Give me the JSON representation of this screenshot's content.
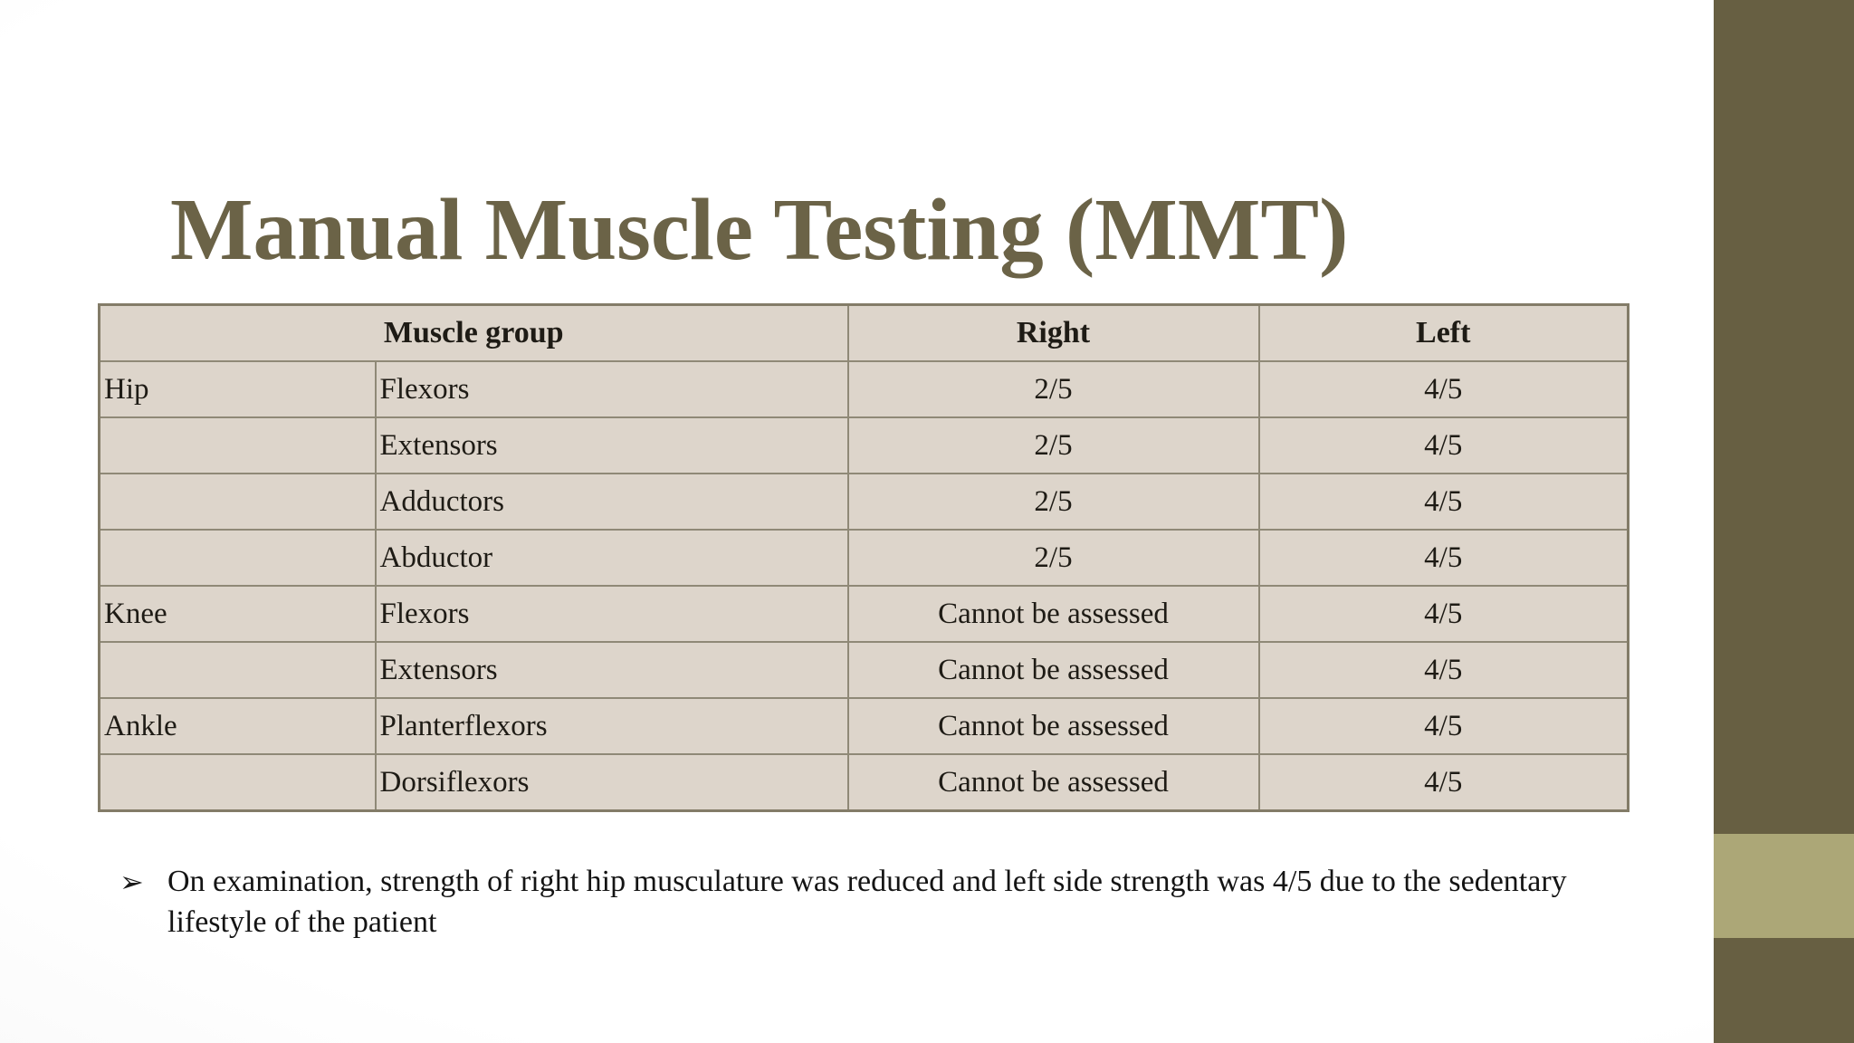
{
  "slide": {
    "title": "Manual Muscle Testing (MMT)",
    "table": {
      "header": {
        "muscle_group": "Muscle group",
        "right": "Right",
        "left": "Left"
      },
      "rows": [
        {
          "region": "Hip",
          "muscle": "Flexors",
          "right": "2/5",
          "left": "4/5"
        },
        {
          "region": "",
          "muscle": "Extensors",
          "right": "2/5",
          "left": "4/5"
        },
        {
          "region": "",
          "muscle": "Adductors",
          "right": "2/5",
          "left": "4/5"
        },
        {
          "region": "",
          "muscle": "Abductor",
          "right": "2/5",
          "left": "4/5"
        },
        {
          "region": "Knee",
          "muscle": "Flexors",
          "right": "Cannot be assessed",
          "left": "4/5"
        },
        {
          "region": "",
          "muscle": "Extensors",
          "right": "Cannot be assessed",
          "left": "4/5"
        },
        {
          "region": "Ankle",
          "muscle": "Planterflexors",
          "right": "Cannot be assessed",
          "left": "4/5"
        },
        {
          "region": "",
          "muscle": "Dorsiflexors",
          "right": "Cannot be assessed",
          "left": "4/5"
        }
      ]
    },
    "note": {
      "bullet_glyph": "➢",
      "text": "On examination, strength of right hip musculature was reduced and left side strength was 4/5 due to the sedentary lifestyle of the patient"
    },
    "colors": {
      "title_text": "#6b6347",
      "table_cell_bg": "#ddd5cb",
      "table_border": "#8f8977",
      "stripe_dark": "#675f42",
      "stripe_light": "#aca777",
      "body_text": "#141414"
    }
  }
}
